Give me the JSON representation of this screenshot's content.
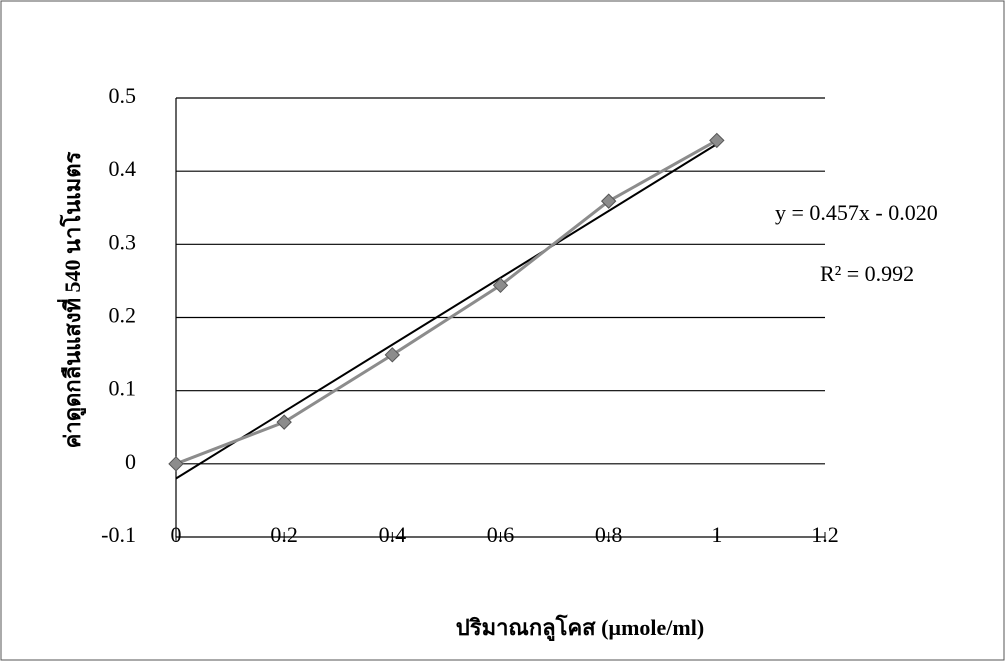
{
  "chart_data": {
    "type": "scatter-line",
    "x": [
      0,
      0.2,
      0.4,
      0.6,
      0.8,
      1.0
    ],
    "series": [
      {
        "color": "#8c8c8c",
        "values": [
          0,
          0.057,
          0.149,
          0.244,
          0.359,
          0.442
        ]
      }
    ],
    "trendline": {
      "slope": 0.457,
      "intercept": -0.02,
      "color": "#000000",
      "equation": "y = 0.457x - 0.020",
      "r2": "R² = 0.992"
    },
    "xlabel": "ปริมาณกลูโคส (µmole/ml)",
    "ylabel": "ค่าดูดกลืนแสงที่ 540 นาโนเมตร",
    "xlim": [
      0,
      1.2
    ],
    "xticks": [
      0,
      0.2,
      0.4,
      0.6,
      0.8,
      1,
      1.2
    ],
    "ylim": [
      -0.1,
      0.5
    ],
    "yticks": [
      -0.1,
      0,
      0.1,
      0.2,
      0.3,
      0.4,
      0.5
    ],
    "grid": true
  }
}
